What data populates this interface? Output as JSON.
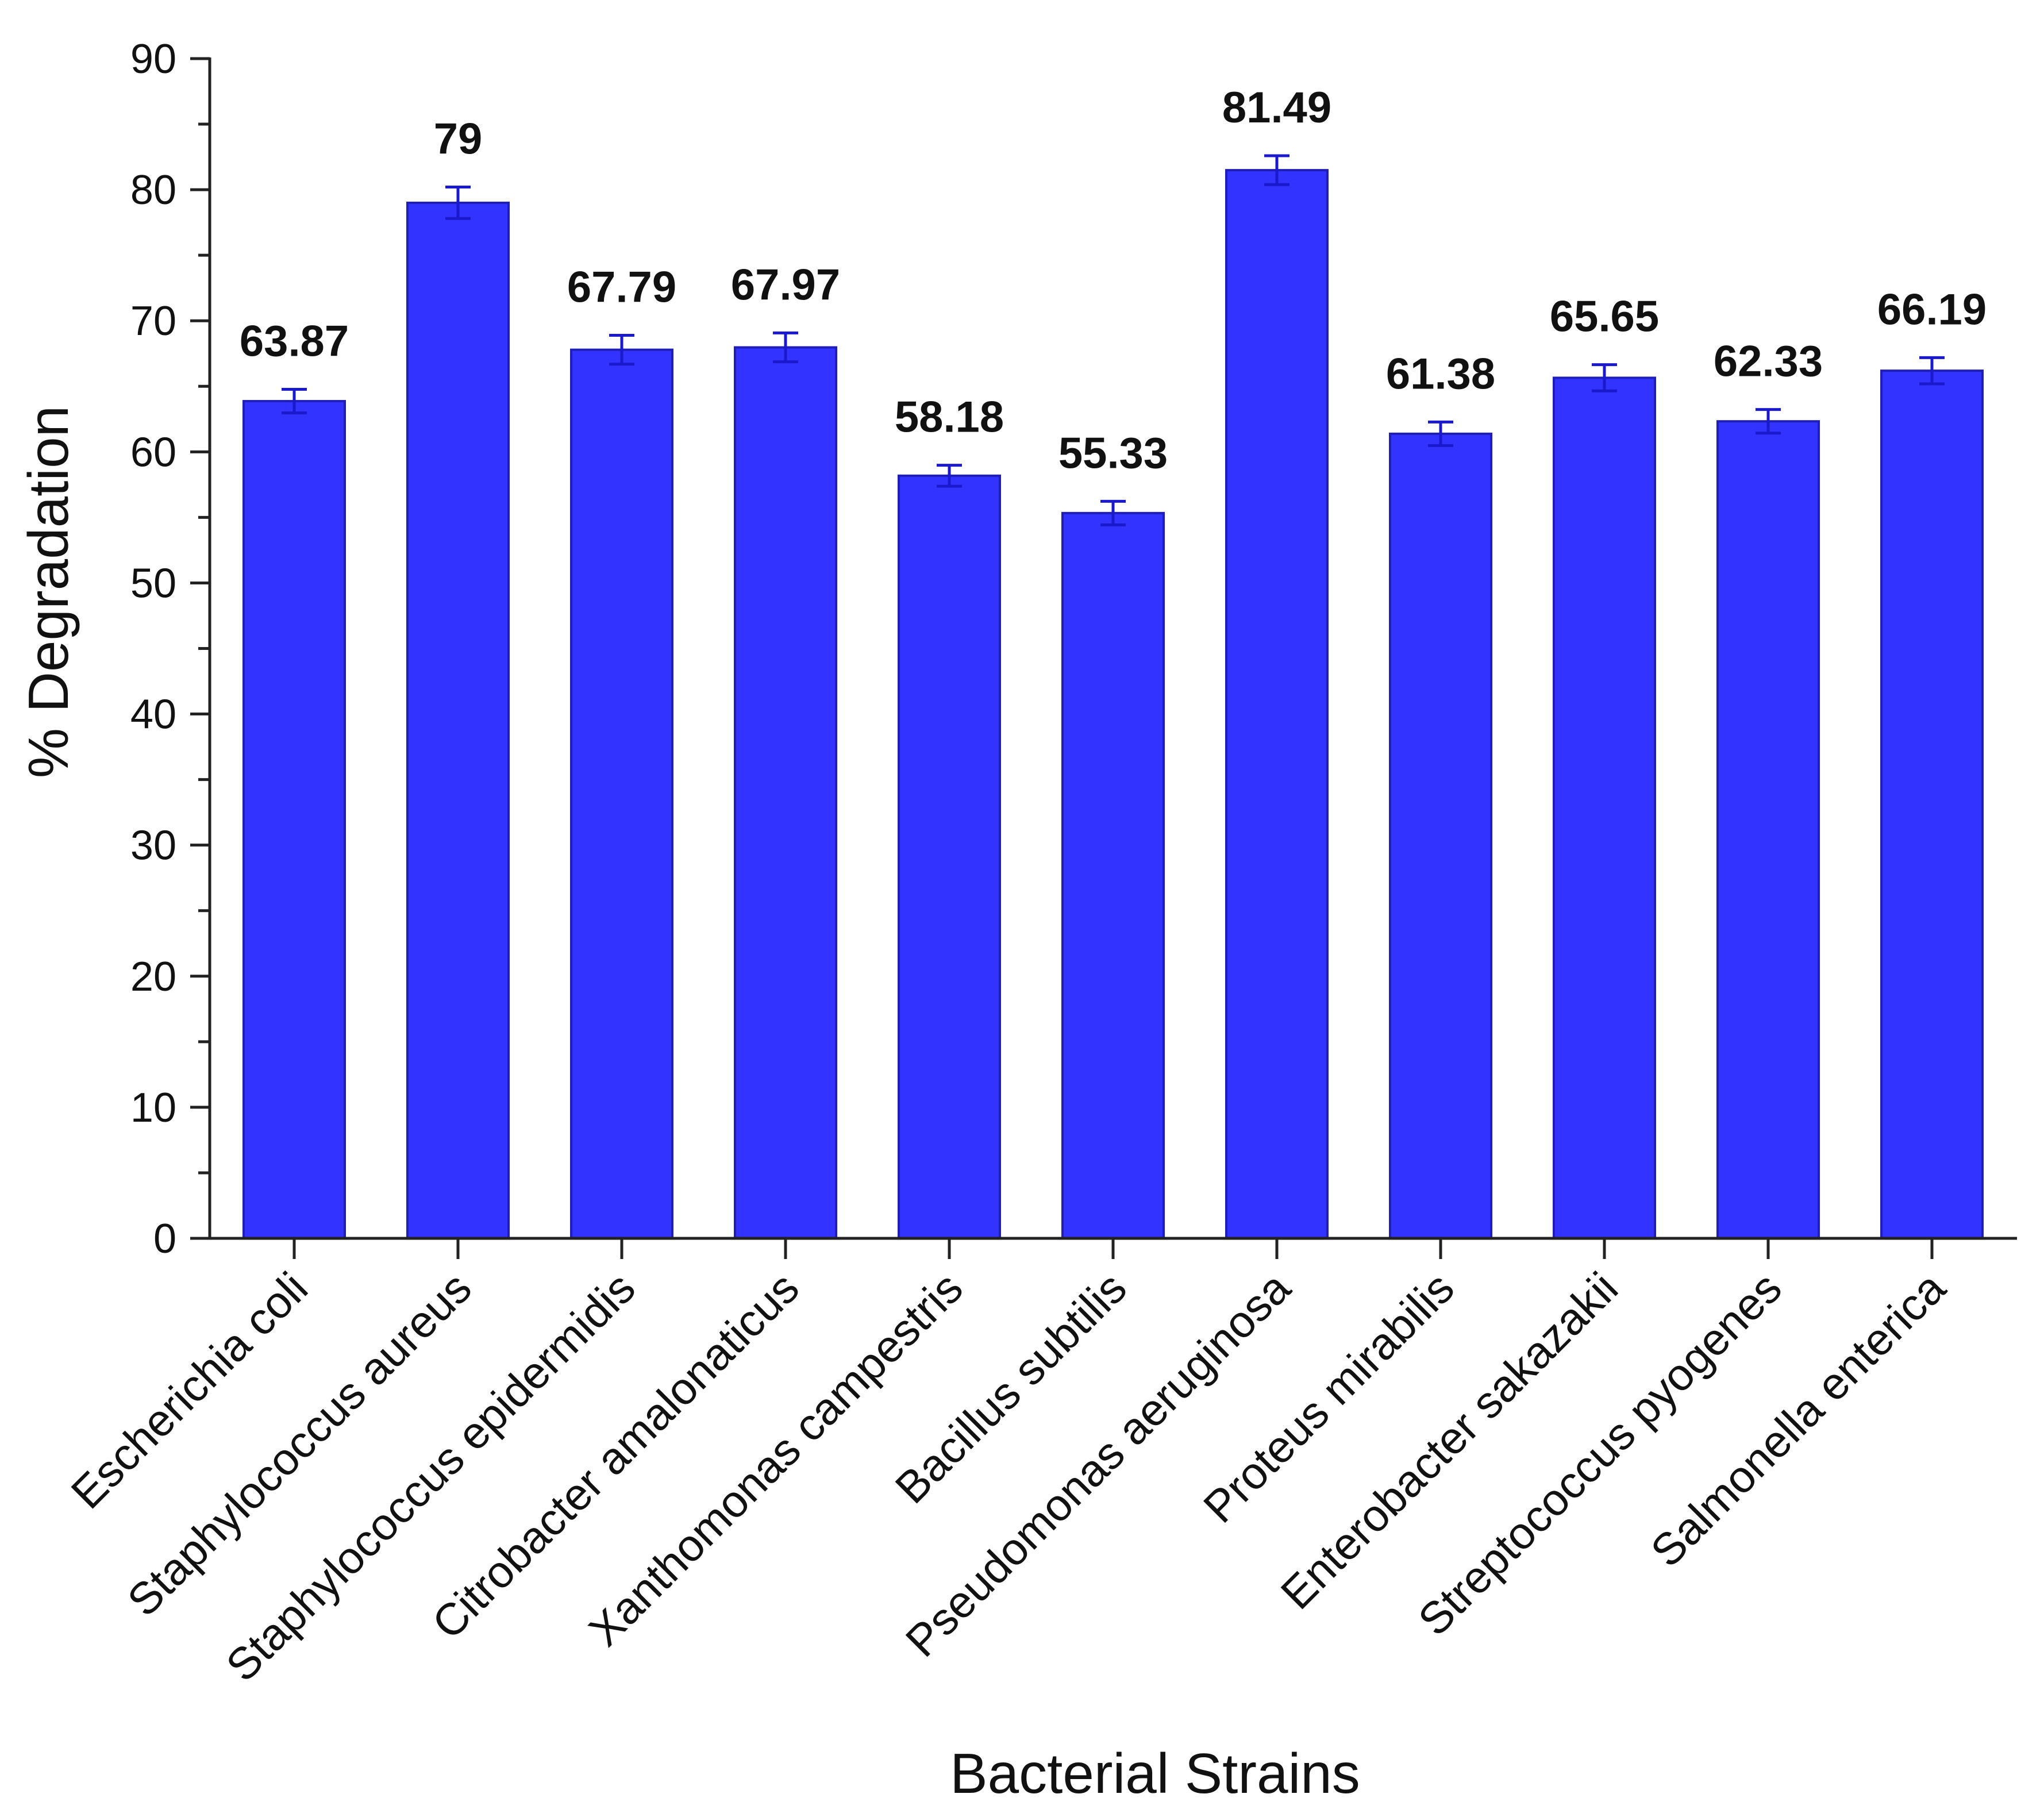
{
  "chart_data": {
    "type": "bar",
    "title": "",
    "xlabel": "Bacterial Strains",
    "ylabel": "% Degradation",
    "ylim": [
      0,
      90
    ],
    "ytick_step": 10,
    "yminor_step": 5,
    "grid": false,
    "bar_color": "#3333ff",
    "errorbar_color": "#1a1acc",
    "categories": [
      "Escherichia coli",
      "Staphylococcus aureus",
      "Staphylococcus epidermidis",
      "Citrobacter amalonaticus",
      "Xanthomonas campestris",
      "Bacillus subtilis",
      "Pseudomonas aeruginosa",
      "Proteus mirabilis",
      "Enterobacter sakazakii",
      "Streptococcus pyogenes",
      "Salmonella enterica"
    ],
    "values": [
      63.87,
      79,
      67.79,
      67.97,
      58.18,
      55.33,
      81.49,
      61.38,
      65.65,
      62.33,
      66.19
    ],
    "value_labels": [
      "63.87",
      "79",
      "67.79",
      "67.97",
      "58.18",
      "55.33",
      "81.49",
      "61.38",
      "65.65",
      "62.33",
      "66.19"
    ],
    "errors": [
      0.9,
      1.2,
      1.1,
      1.1,
      0.8,
      0.9,
      1.1,
      0.9,
      1.0,
      0.9,
      1.0
    ]
  }
}
